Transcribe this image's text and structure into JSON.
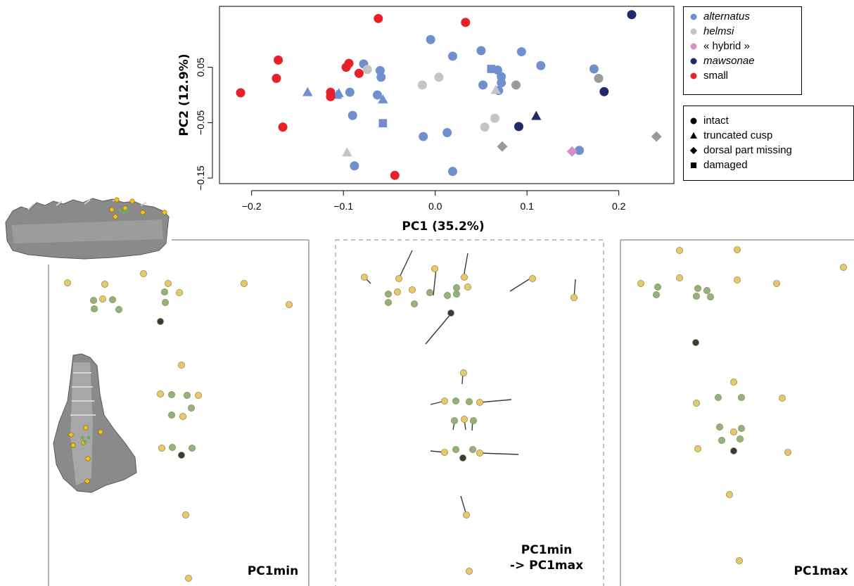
{
  "chart_data": {
    "type": "scatter",
    "title": "",
    "xlabel": "PC1 (35.2%)",
    "ylabel": "PC2 (12.9%)",
    "xlim": [
      -0.235,
      0.26
    ],
    "ylim": [
      -0.16,
      0.16
    ],
    "xticks": [
      -0.2,
      -0.1,
      0.0,
      0.1,
      0.2
    ],
    "xtick_labels": [
      "−0.2",
      "−0.1",
      "0.0",
      "0.1",
      "0.2"
    ],
    "yticks": [
      0.05,
      -0.05,
      -0.15
    ],
    "ytick_labels": [
      "0.05",
      "−0.05",
      "−0.15"
    ],
    "grid": false,
    "legend_groups": [
      {
        "label": "alternatus",
        "color": "#6f8fcf",
        "italic": true
      },
      {
        "label": "helmsi",
        "color": "#c4c4c4",
        "italic": true
      },
      {
        "label": "« hybrid »",
        "color": "#d68fcb",
        "italic": false
      },
      {
        "label": "mawsonae",
        "color": "#1f2a6b",
        "italic": true
      },
      {
        "label": "small",
        "color": "#e8202a",
        "italic": false
      }
    ],
    "legend_shapes": [
      {
        "label": "intact",
        "shape": "circle"
      },
      {
        "label": "truncated cusp",
        "shape": "triangle"
      },
      {
        "label": "dorsal part missing",
        "shape": "diamond"
      },
      {
        "label": "damaged",
        "shape": "square"
      }
    ],
    "series": [
      {
        "name": "alternatus",
        "color": "#6f8fcf",
        "points": [
          {
            "x": -0.005,
            "y": 0.1,
            "s": "circle"
          },
          {
            "x": 0.019,
            "y": 0.07,
            "s": "circle"
          },
          {
            "x": 0.05,
            "y": 0.08,
            "s": "circle"
          },
          {
            "x": 0.094,
            "y": 0.078,
            "s": "circle"
          },
          {
            "x": -0.078,
            "y": 0.056,
            "s": "circle"
          },
          {
            "x": -0.06,
            "y": 0.044,
            "s": "circle"
          },
          {
            "x": -0.059,
            "y": 0.032,
            "s": "circle"
          },
          {
            "x": 0.068,
            "y": 0.045,
            "s": "circle"
          },
          {
            "x": 0.072,
            "y": 0.033,
            "s": "circle"
          },
          {
            "x": 0.072,
            "y": 0.022,
            "s": "circle"
          },
          {
            "x": 0.115,
            "y": 0.053,
            "s": "circle"
          },
          {
            "x": 0.173,
            "y": 0.047,
            "s": "circle"
          },
          {
            "x": 0.052,
            "y": 0.018,
            "s": "circle"
          },
          {
            "x": 0.069,
            "y": 0.008,
            "s": "circle"
          },
          {
            "x": -0.093,
            "y": 0.005,
            "s": "circle"
          },
          {
            "x": -0.063,
            "y": 0.0,
            "s": "circle"
          },
          {
            "x": -0.09,
            "y": -0.037,
            "s": "circle"
          },
          {
            "x": -0.013,
            "y": -0.075,
            "s": "circle"
          },
          {
            "x": 0.013,
            "y": -0.068,
            "s": "circle"
          },
          {
            "x": 0.157,
            "y": -0.1,
            "s": "circle"
          },
          {
            "x": -0.088,
            "y": -0.128,
            "s": "circle"
          },
          {
            "x": 0.019,
            "y": -0.138,
            "s": "circle"
          },
          {
            "x": -0.139,
            "y": 0.005,
            "s": "triangle"
          },
          {
            "x": -0.105,
            "y": 0.003,
            "s": "triangle"
          },
          {
            "x": -0.107,
            "y": 0.0,
            "s": "triangle"
          },
          {
            "x": -0.057,
            "y": -0.008,
            "s": "triangle"
          },
          {
            "x": 0.061,
            "y": 0.047,
            "s": "square"
          },
          {
            "x": -0.057,
            "y": -0.051,
            "s": "square"
          }
        ]
      },
      {
        "name": "helmsi",
        "color": "#c4c4c4",
        "points": [
          {
            "x": -0.074,
            "y": 0.046,
            "s": "circle"
          },
          {
            "x": 0.004,
            "y": 0.032,
            "s": "circle"
          },
          {
            "x": -0.014,
            "y": 0.018,
            "s": "circle"
          },
          {
            "x": 0.065,
            "y": -0.042,
            "s": "circle"
          },
          {
            "x": 0.054,
            "y": -0.058,
            "s": "circle"
          },
          {
            "x": -0.097,
            "y": 0.054,
            "s": "triangle"
          },
          {
            "x": -0.096,
            "y": -0.104,
            "s": "triangle"
          },
          {
            "x": 0.066,
            "y": 0.009,
            "s": "triangle"
          }
        ]
      },
      {
        "name": "helmsi-dark",
        "color": "#9a9a9a",
        "points": [
          {
            "x": 0.178,
            "y": 0.03,
            "s": "circle"
          },
          {
            "x": 0.088,
            "y": 0.018,
            "s": "circle"
          },
          {
            "x": 0.073,
            "y": -0.093,
            "s": "diamond"
          },
          {
            "x": 0.241,
            "y": -0.075,
            "s": "diamond"
          }
        ]
      },
      {
        "name": "« hybrid »",
        "color": "#d68fcb",
        "points": [
          {
            "x": 0.149,
            "y": -0.102,
            "s": "diamond"
          }
        ]
      },
      {
        "name": "mawsonae",
        "color": "#1f2a6b",
        "points": [
          {
            "x": 0.214,
            "y": 0.145,
            "s": "circle"
          },
          {
            "x": 0.184,
            "y": 0.006,
            "s": "circle"
          },
          {
            "x": 0.091,
            "y": -0.057,
            "s": "circle"
          },
          {
            "x": 0.11,
            "y": -0.038,
            "s": "triangle"
          }
        ]
      },
      {
        "name": "small",
        "color": "#e8202a",
        "points": [
          {
            "x": -0.062,
            "y": 0.138,
            "s": "circle"
          },
          {
            "x": 0.033,
            "y": 0.131,
            "s": "circle"
          },
          {
            "x": -0.171,
            "y": 0.063,
            "s": "circle"
          },
          {
            "x": -0.094,
            "y": 0.057,
            "s": "circle"
          },
          {
            "x": -0.097,
            "y": 0.05,
            "s": "circle"
          },
          {
            "x": -0.083,
            "y": 0.039,
            "s": "circle"
          },
          {
            "x": -0.173,
            "y": 0.03,
            "s": "circle"
          },
          {
            "x": -0.114,
            "y": 0.005,
            "s": "circle"
          },
          {
            "x": -0.114,
            "y": -0.003,
            "s": "circle"
          },
          {
            "x": -0.212,
            "y": 0.004,
            "s": "circle"
          },
          {
            "x": -0.166,
            "y": -0.058,
            "s": "circle"
          },
          {
            "x": -0.044,
            "y": -0.145,
            "s": "circle"
          }
        ]
      }
    ]
  },
  "panels": [
    {
      "id": "pc1min",
      "label_lines": [
        "PC1min"
      ]
    },
    {
      "id": "transition",
      "label_lines": [
        "PC1min",
        "-> PC1max"
      ]
    },
    {
      "id": "pc1max",
      "label_lines": [
        "PC1max"
      ]
    }
  ],
  "colors": {
    "landmark_yellow": "#e6c96d",
    "landmark_green": "#8fb47f",
    "landmark_black": "#3a3a3a",
    "panel_border": "#9b9b9b"
  }
}
